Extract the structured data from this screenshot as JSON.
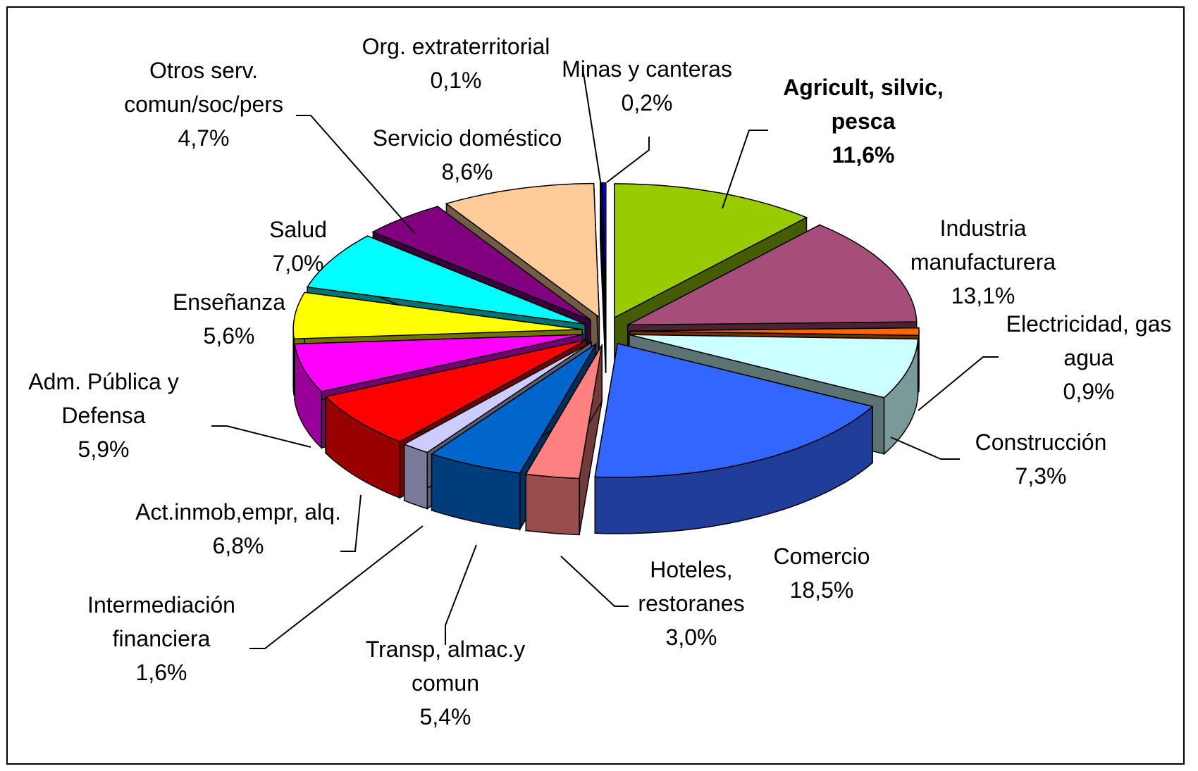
{
  "chart_data": {
    "type": "pie3d",
    "categories": [
      "Agricult, silvic, pesca",
      "Industria manufacturera",
      "Electricidad, gas agua",
      "Construcción",
      "Comercio",
      "Hoteles, restoranes",
      "Transp, almac.y comun",
      "Intermediación financiera",
      "Act.inmob,empr, alq.",
      "Adm. Pública y Defensa",
      "Enseñanza",
      "Salud",
      "Otros serv. comun/soc/pers",
      "Servicio doméstico",
      "Org. extraterritorial",
      "Minas y canteras"
    ],
    "values": [
      11.6,
      13.1,
      0.9,
      7.3,
      18.5,
      3.0,
      5.4,
      1.6,
      6.8,
      5.9,
      5.6,
      7.0,
      4.7,
      8.6,
      0.1,
      0.2
    ],
    "value_labels": [
      "11,6%",
      "13,1%",
      "0,9%",
      "7,3%",
      "18,5%",
      "3,0%",
      "5,4%",
      "1,6%",
      "6,8%",
      "5,9%",
      "5,6%",
      "7,0%",
      "4,7%",
      "8,6%",
      "0,1%",
      "0,2%"
    ],
    "colors": [
      "#99cc00",
      "#a64d79",
      "#ff6600",
      "#ccffff",
      "#3366ff",
      "#ff8080",
      "#0066cc",
      "#ccccff",
      "#ff0000",
      "#ff00ff",
      "#ffff00",
      "#00ffff",
      "#800080",
      "#ffcc99",
      "#000080",
      "#0000cc"
    ]
  }
}
